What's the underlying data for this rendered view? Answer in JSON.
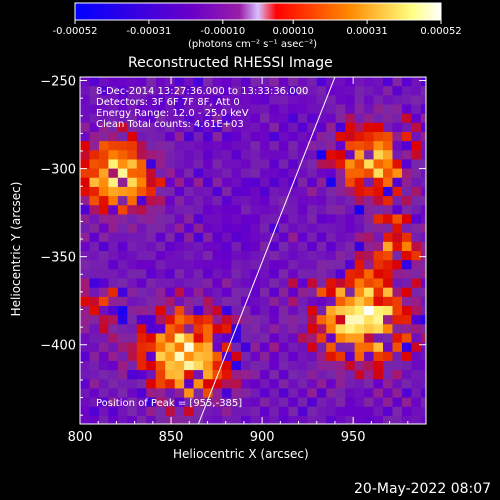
{
  "colorbar": {
    "ticks": [
      "-0.00052",
      "-0.00031",
      "-0.00010",
      "0.00010",
      "0.00031",
      "0.00052"
    ],
    "tick_values": [
      -0.00052,
      -0.00031,
      -0.0001,
      0.0001,
      0.00031,
      0.00052
    ],
    "units": "(photons cm⁻² s⁻¹ asec⁻²)",
    "colors": [
      "#0000ff",
      "#6a00c8",
      "#9a1ea8",
      "#d8c0ff",
      "#ff0000",
      "#ff8a00",
      "#ffff80",
      "#ffffff"
    ]
  },
  "chart_data": {
    "type": "heatmap",
    "title": "Reconstructed RHESSI Image",
    "xlabel": "Heliocentric X (arcsec)",
    "ylabel": "Heliocentric Y (arcsec)",
    "xlim": [
      800,
      990
    ],
    "ylim": [
      -445,
      -248
    ],
    "xticks": [
      800,
      850,
      900,
      950
    ],
    "yticks": [
      -250,
      -300,
      -350,
      -400
    ],
    "xtick_labels": [
      "800",
      "850",
      "900",
      "950"
    ],
    "ytick_labels": [
      "−250",
      "−300",
      "−350",
      "−400"
    ],
    "limb_line": [
      [
        865,
        -445
      ],
      [
        940,
        -248
      ]
    ],
    "peak": [
      955,
      -385
    ],
    "annotations": [
      "8-Dec-2014 13:27:36.000 to 13:33:36.000",
      "Detectors: 3F 6F 7F 8F, Att 0",
      "Energy Range: 12.0 - 25.0 keV",
      "Clean    Total counts: 4.61E+03"
    ],
    "peak_label": "Position of Peak = [955,-385]",
    "blobs": [
      {
        "x": 820,
        "y": -305,
        "amp": 0.85,
        "r": 22
      },
      {
        "x": 858,
        "y": -405,
        "amp": 0.9,
        "r": 26
      },
      {
        "x": 955,
        "y": -385,
        "amp": 1.0,
        "r": 26
      },
      {
        "x": 960,
        "y": -295,
        "amp": 0.75,
        "r": 22
      },
      {
        "x": 975,
        "y": -340,
        "amp": 0.6,
        "r": 15
      },
      {
        "x": 810,
        "y": -375,
        "amp": 0.55,
        "r": 12
      }
    ]
  },
  "footer": {
    "timestamp": "20-May-2022 08:07"
  }
}
